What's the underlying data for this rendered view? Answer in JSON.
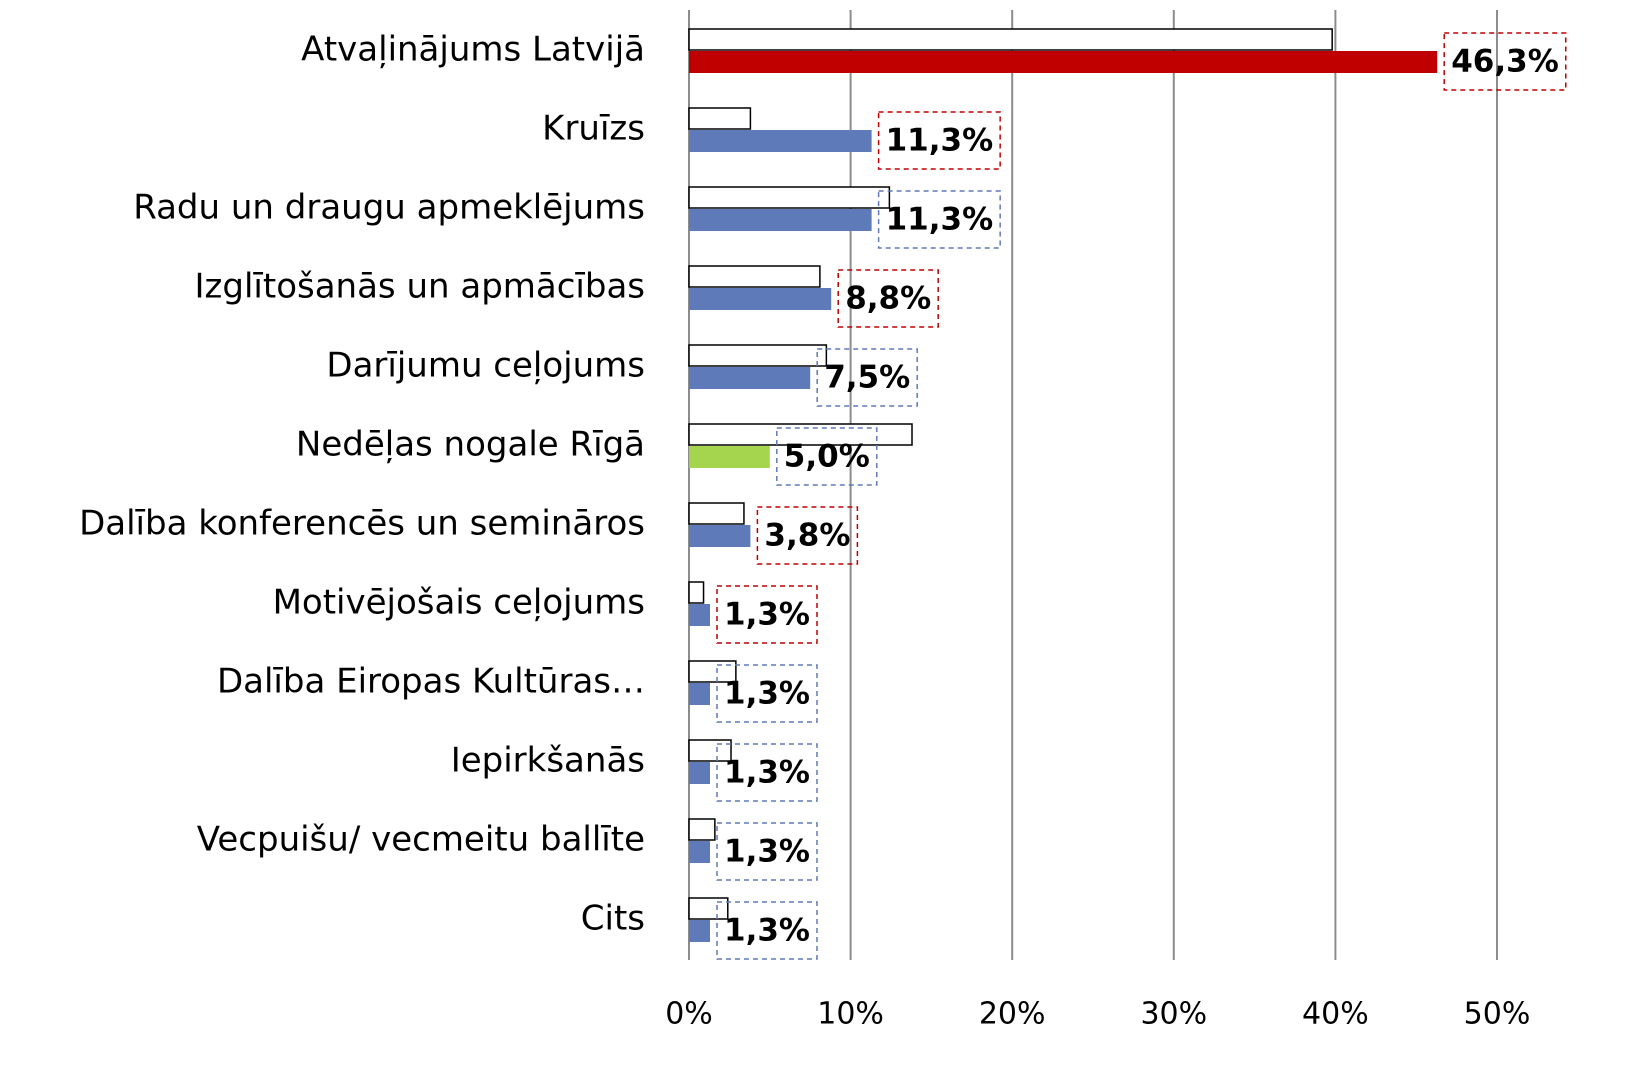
{
  "chart_data": {
    "type": "bar",
    "orientation": "horizontal",
    "categories": [
      "Atvaļinājums Latvijā",
      "Kruīzs",
      "Radu un draugu apmeklējums",
      "Izglītošanās un apmācības",
      "Darījumu ceļojums",
      "Nedēļas nogale Rīgā",
      "Dalība konferencēs un semināros",
      "Motivējošais ceļojums",
      "Dalība Eiropas Kultūras…",
      "Iepirkšanās",
      "Vecpuišu/ vecmeitu ballīte",
      "Cits"
    ],
    "series": [
      {
        "color": "#ffffff",
        "edge_color": "#000000",
        "values": [
          39.8,
          3.8,
          12.4,
          8.1,
          8.5,
          13.8,
          3.4,
          0.9,
          2.9,
          2.6,
          1.6,
          2.4
        ]
      },
      {
        "colors": [
          "#c00000",
          "#5f7ab9",
          "#5f7ab9",
          "#5f7ab9",
          "#5f7ab9",
          "#a5d54f",
          "#5f7ab9",
          "#5f7ab9",
          "#5f7ab9",
          "#5f7ab9",
          "#5f7ab9",
          "#5f7ab9"
        ],
        "values": [
          46.3,
          11.3,
          11.3,
          8.8,
          7.5,
          5.0,
          3.8,
          1.3,
          1.3,
          1.3,
          1.3,
          1.3
        ],
        "value_labels": [
          "46,3%",
          "11,3%",
          "11,3%",
          "8,8%",
          "7,5%",
          "5,0%",
          "3,8%",
          "1,3%",
          "1,3%",
          "1,3%",
          "1,3%",
          "1,3%"
        ],
        "label_box_colors": [
          "#c00000",
          "#c00000",
          "#5f7ab9",
          "#c00000",
          "#5f7ab9",
          "#5f7ab9",
          "#c00000",
          "#c00000",
          "#5f7ab9",
          "#5f7ab9",
          "#5f7ab9",
          "#5f7ab9"
        ]
      }
    ],
    "xlim": [
      0,
      50
    ],
    "xticks": [
      {
        "value": 0,
        "label": "0%"
      },
      {
        "value": 10,
        "label": "10%"
      },
      {
        "value": 20,
        "label": "20%"
      },
      {
        "value": 30,
        "label": "30%"
      },
      {
        "value": 40,
        "label": "40%"
      },
      {
        "value": 50,
        "label": "50%"
      }
    ],
    "grid": true
  }
}
